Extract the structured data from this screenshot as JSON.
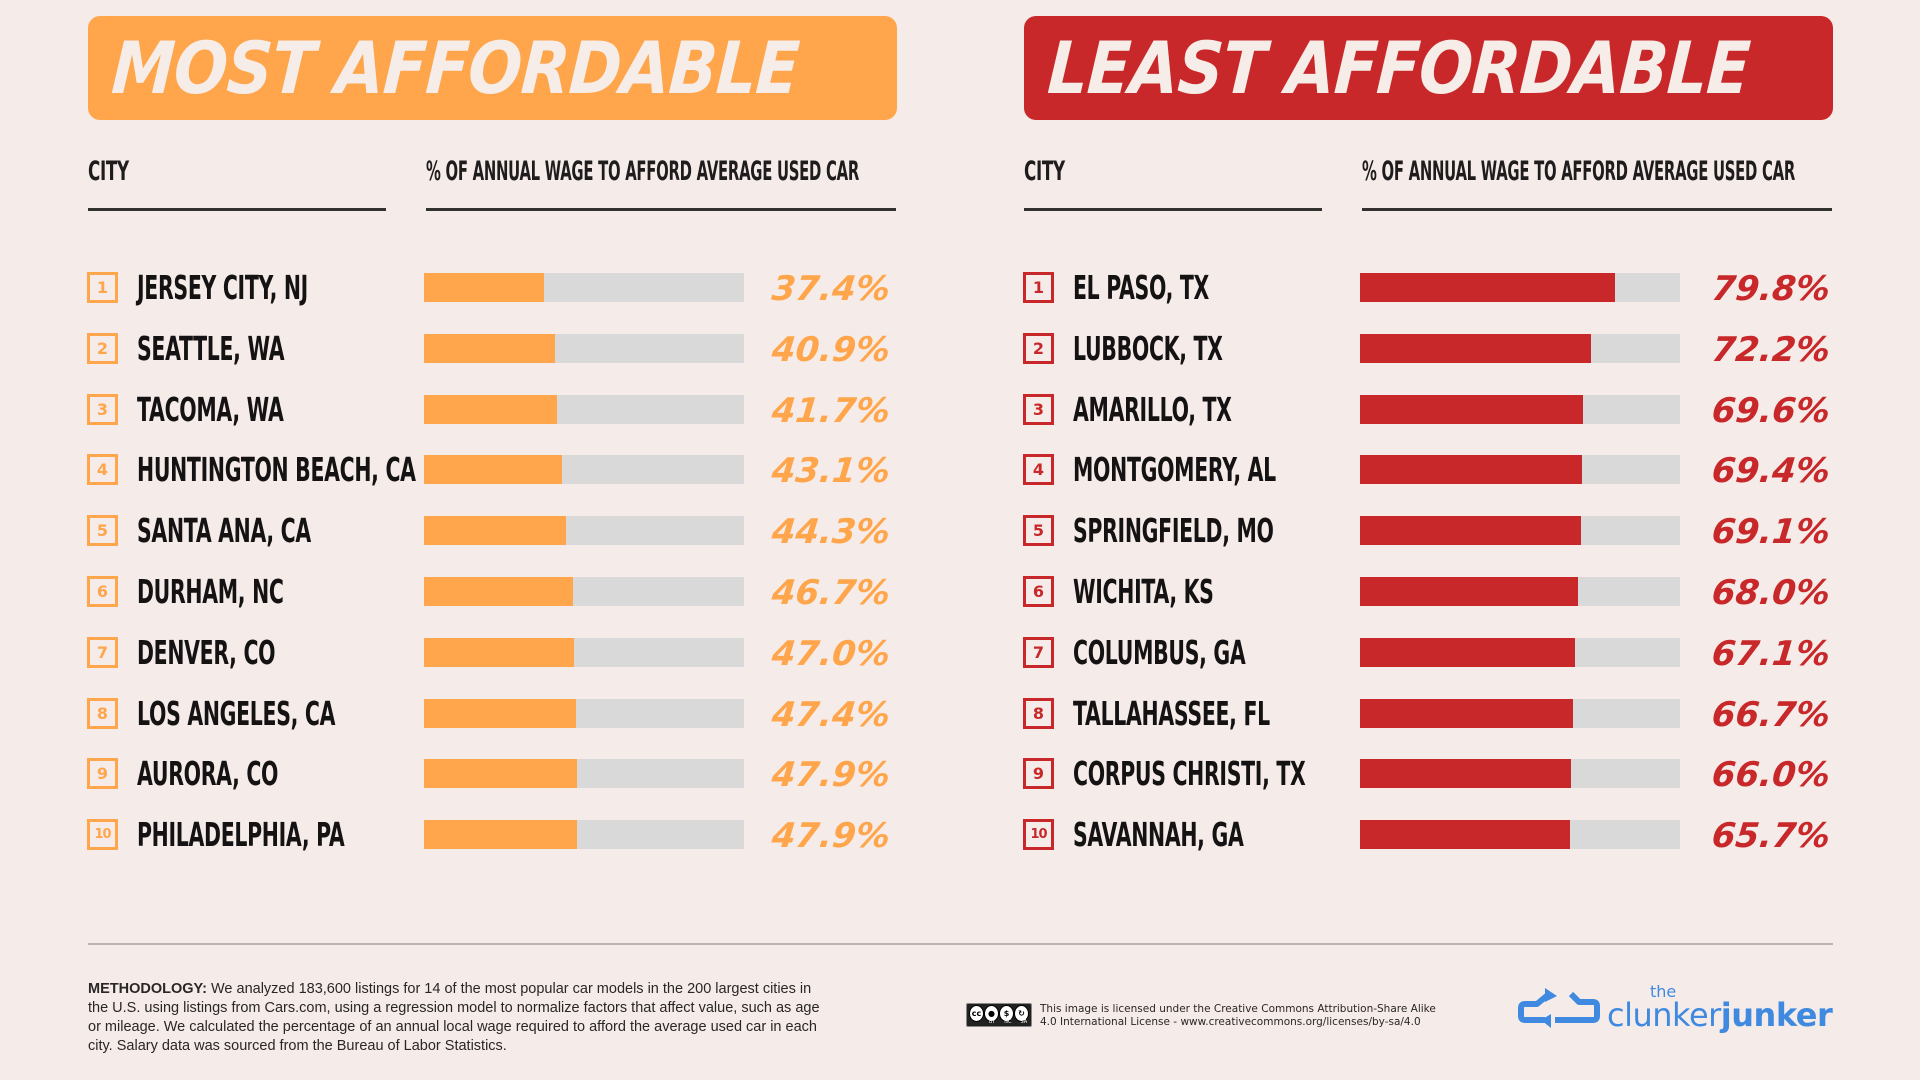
{
  "colors": {
    "background": "#f5ece9",
    "most_affordable": "#ffa54b",
    "least_affordable": "#c8282a",
    "bar_track": "#d9d9d9",
    "logo_blue": "#3f8ae0"
  },
  "most": {
    "title": "MOST AFFORDABLE",
    "col_city": "CITY",
    "col_pct": "% OF ANNUAL WAGE TO AFFORD AVERAGE USED CAR",
    "rows": [
      {
        "rank": "1",
        "city": "JERSEY CITY, NJ",
        "value": 37.4,
        "label": "37.4%"
      },
      {
        "rank": "2",
        "city": "SEATTLE, WA",
        "value": 40.9,
        "label": "40.9%"
      },
      {
        "rank": "3",
        "city": "TACOMA, WA",
        "value": 41.7,
        "label": "41.7%"
      },
      {
        "rank": "4",
        "city": "HUNTINGTON BEACH, CA",
        "value": 43.1,
        "label": "43.1%"
      },
      {
        "rank": "5",
        "city": "SANTA ANA, CA",
        "value": 44.3,
        "label": "44.3%"
      },
      {
        "rank": "6",
        "city": "DURHAM, NC",
        "value": 46.7,
        "label": "46.7%"
      },
      {
        "rank": "7",
        "city": "DENVER, CO",
        "value": 47.0,
        "label": "47.0%"
      },
      {
        "rank": "8",
        "city": "LOS ANGELES, CA",
        "value": 47.4,
        "label": "47.4%"
      },
      {
        "rank": "9",
        "city": "AURORA, CO",
        "value": 47.9,
        "label": "47.9%"
      },
      {
        "rank": "10",
        "city": "PHILADELPHIA, PA",
        "value": 47.9,
        "label": "47.9%"
      }
    ]
  },
  "least": {
    "title": "LEAST AFFORDABLE",
    "col_city": "CITY",
    "col_pct": "% OF ANNUAL WAGE TO AFFORD AVERAGE USED CAR",
    "rows": [
      {
        "rank": "1",
        "city": "EL PASO, TX",
        "value": 79.8,
        "label": "79.8%"
      },
      {
        "rank": "2",
        "city": "LUBBOCK, TX",
        "value": 72.2,
        "label": "72.2%"
      },
      {
        "rank": "3",
        "city": "AMARILLO, TX",
        "value": 69.6,
        "label": "69.6%"
      },
      {
        "rank": "4",
        "city": "MONTGOMERY, AL",
        "value": 69.4,
        "label": "69.4%"
      },
      {
        "rank": "5",
        "city": "SPRINGFIELD, MO",
        "value": 69.1,
        "label": "69.1%"
      },
      {
        "rank": "6",
        "city": "WICHITA, KS",
        "value": 68.0,
        "label": "68.0%"
      },
      {
        "rank": "7",
        "city": "COLUMBUS, GA",
        "value": 67.1,
        "label": "67.1%"
      },
      {
        "rank": "8",
        "city": "TALLAHASSEE, FL",
        "value": 66.7,
        "label": "66.7%"
      },
      {
        "rank": "9",
        "city": "CORPUS CHRISTI, TX",
        "value": 66.0,
        "label": "66.0%"
      },
      {
        "rank": "10",
        "city": "SAVANNAH, GA",
        "value": 65.7,
        "label": "65.7%"
      }
    ]
  },
  "chart_data": [
    {
      "type": "bar",
      "title": "MOST AFFORDABLE",
      "xlabel": "% OF ANNUAL WAGE TO AFFORD AVERAGE USED CAR",
      "ylabel": "CITY",
      "orientation": "horizontal",
      "xlim": [
        0,
        100
      ],
      "categories": [
        "JERSEY CITY, NJ",
        "SEATTLE, WA",
        "TACOMA, WA",
        "HUNTINGTON BEACH, CA",
        "SANTA ANA, CA",
        "DURHAM, NC",
        "DENVER, CO",
        "LOS ANGELES, CA",
        "AURORA, CO",
        "PHILADELPHIA, PA"
      ],
      "values": [
        37.4,
        40.9,
        41.7,
        43.1,
        44.3,
        46.7,
        47.0,
        47.4,
        47.9,
        47.9
      ],
      "color": "#ffa54b"
    },
    {
      "type": "bar",
      "title": "LEAST AFFORDABLE",
      "xlabel": "% OF ANNUAL WAGE TO AFFORD AVERAGE USED CAR",
      "ylabel": "CITY",
      "orientation": "horizontal",
      "xlim": [
        0,
        100
      ],
      "categories": [
        "EL PASO, TX",
        "LUBBOCK, TX",
        "AMARILLO, TX",
        "MONTGOMERY, AL",
        "SPRINGFIELD, MO",
        "WICHITA, KS",
        "COLUMBUS, GA",
        "TALLAHASSEE, FL",
        "CORPUS CHRISTI, TX",
        "SAVANNAH, GA"
      ],
      "values": [
        79.8,
        72.2,
        69.6,
        69.4,
        69.1,
        68.0,
        67.1,
        66.7,
        66.0,
        65.7
      ],
      "color": "#c8282a"
    }
  ],
  "footer": {
    "methodology_label": "METHODOLOGY:",
    "methodology_text": " We analyzed 183,600 listings for 14 of the most popular car models in the 200 largest cities in the U.S. using listings from Cars.com, using a regression model to normalize factors that affect value, such as age or mileage. We calculated the percentage of an annual local wage required to afford the average used car in each city. Salary data was sourced from the Bureau of Labor Statistics.",
    "license_line1": "This image is licensed under the Creative Commons  Attribution-Share Alike",
    "license_line2": "4.0 International License - www.creativecommons.org/licenses/by-sa/4.0",
    "cc_icon": "creative-commons-by-nc-sa",
    "cc_symbols": [
      "cc",
      "BY",
      "NC",
      "SA"
    ],
    "logo_the": "the",
    "logo_light": "clunker",
    "logo_bold": "junker"
  }
}
